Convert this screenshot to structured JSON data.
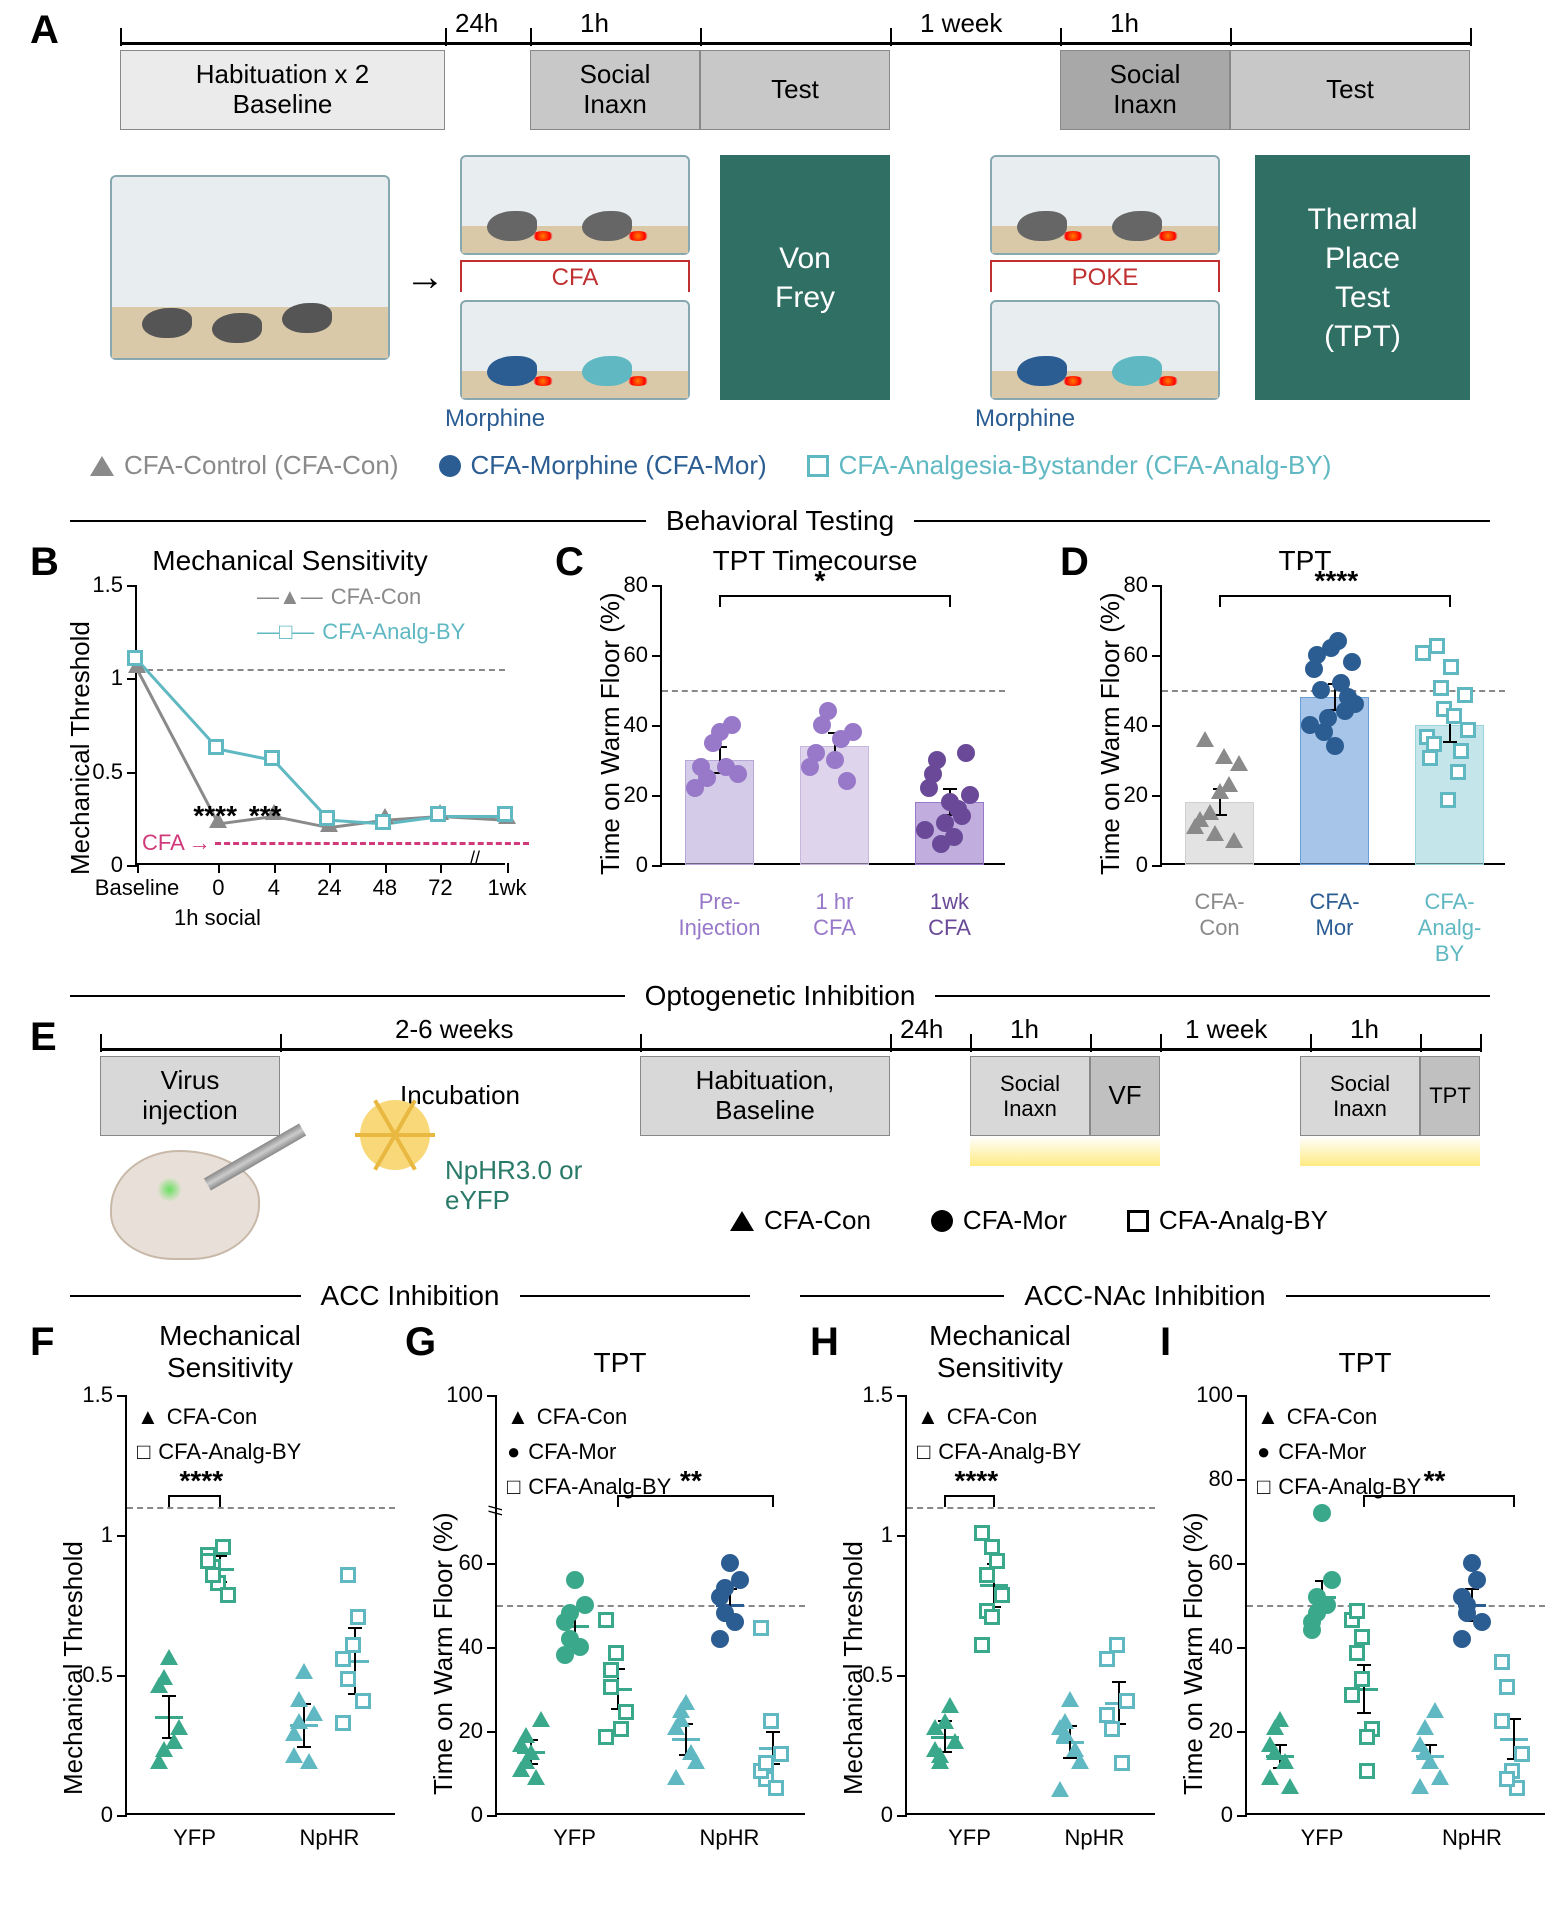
{
  "palette": {
    "cfa_con_gray": "#8a8a8a",
    "cfa_mor_blue": "#2b5d93",
    "cfa_analg_cyan": "#5fb8c2",
    "green_box": "#2f6f64",
    "purple_light": "#b8a8d8",
    "purple_mid": "#9878c8",
    "purple_dark": "#6a4a98",
    "teal_green": "#3aa88a",
    "teal_cyan": "#5fb8c2",
    "nav_blue": "#2b5d93",
    "pink": "#d13a7a",
    "dashed_gray": "#888888"
  },
  "panelA": {
    "label": "A",
    "timeline_intervals": [
      "24h",
      "1h",
      "1 week",
      "1h"
    ],
    "boxes": [
      {
        "text": "Habituation x 2\nBaseline",
        "bg": "#ebebeb"
      },
      {
        "text": "Social\nInaxn",
        "bg": "#c8c8c8"
      },
      {
        "text": "Test",
        "bg": "#c8c8c8"
      },
      {
        "text": "Social\nInaxn",
        "bg": "#a8a8a8"
      },
      {
        "text": "Test",
        "bg": "#c8c8c8"
      }
    ],
    "green1": "Von\nFrey",
    "green2": "Thermal\nPlace\nTest\n(TPT)",
    "cfa_label": "CFA",
    "poke_label": "POKE",
    "morphine_label": "Morphine",
    "legend": [
      {
        "text": "CFA-Control (CFA-Con)",
        "marker": "tri",
        "color": "#8a8a8a"
      },
      {
        "text": "CFA-Morphine (CFA-Mor)",
        "marker": "circ",
        "color": "#2b5d93"
      },
      {
        "text": "CFA-Analgesia-Bystander (CFA-Analg-BY)",
        "marker": "sq",
        "color": "#5fb8c2"
      }
    ]
  },
  "section_behavioral": "Behavioral Testing",
  "panelB": {
    "label": "B",
    "title": "Mechanical Sensitivity",
    "ylabel": "Mechanical Threshold",
    "ylim": [
      0,
      1.5
    ],
    "yticks": [
      0,
      0.5,
      1.0,
      1.5
    ],
    "xticks": [
      "Baseline",
      "0",
      "4",
      "24",
      "48",
      "72",
      "1wk"
    ],
    "x_positions": [
      0,
      0.22,
      0.37,
      0.52,
      0.67,
      0.82,
      1.0
    ],
    "sub_label": "1h social",
    "cfa_arrow_label": "CFA",
    "ref_dash": 1.05,
    "series": [
      {
        "name": "CFA-Con",
        "color": "#8a8a8a",
        "marker": "tri",
        "y": [
          1.05,
          0.22,
          0.26,
          0.2,
          0.24,
          0.26,
          0.24
        ]
      },
      {
        "name": "CFA-Analg-BY",
        "color": "#5fb8c2",
        "marker": "sq",
        "y": [
          1.1,
          0.62,
          0.56,
          0.24,
          0.22,
          0.26,
          0.26
        ]
      }
    ],
    "sig": [
      {
        "at": 0.22,
        "text": "****"
      },
      {
        "at": 0.37,
        "text": "***"
      }
    ],
    "legend": [
      "CFA-Con",
      "CFA-Analg-BY"
    ]
  },
  "panelC": {
    "label": "C",
    "title": "TPT Timecourse",
    "ylabel": "Time on Warm Floor (%)",
    "ylim": [
      0,
      80
    ],
    "yticks": [
      0,
      20,
      40,
      60,
      80
    ],
    "ref_dash": 50,
    "bars": [
      {
        "label": "Pre-\nInjection",
        "mean": 30,
        "err": 4,
        "color": "#b8a8d8",
        "dot_color": "#9878c8",
        "points": [
          22,
          28,
          25,
          35,
          38,
          28,
          40,
          26
        ]
      },
      {
        "label": "1 hr\nCFA",
        "mean": 34,
        "err": 4,
        "color": "#c8b8e0",
        "dot_color": "#9878c8",
        "points": [
          28,
          32,
          40,
          44,
          30,
          36,
          24,
          38
        ]
      },
      {
        "label": "1wk\nCFA",
        "mean": 18,
        "err": 4,
        "color": "#9878c8",
        "dot_color": "#6a4a98",
        "points": [
          10,
          22,
          26,
          30,
          6,
          12,
          18,
          8,
          16,
          14,
          32,
          20
        ]
      }
    ],
    "sig": {
      "from": 0,
      "to": 2,
      "text": "*"
    }
  },
  "panelD": {
    "label": "D",
    "title": "TPT",
    "ylabel": "Time on Warm Floor (%)",
    "ylim": [
      0,
      80
    ],
    "yticks": [
      0,
      20,
      40,
      60,
      80
    ],
    "ref_dash": 50,
    "bars": [
      {
        "label": "CFA-\nCon",
        "mean": 18,
        "err": 4,
        "color": "#d0d0d0",
        "marker": "tri",
        "marker_color": "#8a8a8a",
        "points": [
          10,
          12,
          35,
          14,
          8,
          20,
          30,
          22,
          6,
          28
        ]
      },
      {
        "label": "CFA-\nMor",
        "mean": 48,
        "err": 4,
        "color": "#6b9ed8",
        "marker": "circ",
        "marker_color": "#2b5d93",
        "points": [
          40,
          56,
          60,
          50,
          38,
          42,
          62,
          34,
          64,
          52,
          44,
          48,
          58,
          46
        ]
      },
      {
        "label": "CFA-\nAnalg-BY",
        "mean": 40,
        "err": 5,
        "color": "#9dd4db",
        "marker": "sq",
        "marker_color": "#5fb8c2",
        "points": [
          60,
          36,
          30,
          34,
          62,
          50,
          44,
          18,
          56,
          42,
          26,
          32,
          48,
          38
        ]
      }
    ],
    "sig": {
      "from": 0,
      "to": 2,
      "text": "****"
    }
  },
  "section_opto": "Optogenetic Inhibition",
  "panelE": {
    "label": "E",
    "boxes": [
      {
        "text": "Virus\ninjection",
        "bg": "#d8d8d8"
      },
      {
        "text_over": "2-6 weeks",
        "text": "Incubation",
        "bg": "transparent"
      },
      {
        "text": "Habituation,\nBaseline",
        "bg": "#d8d8d8"
      },
      {
        "text": "Social\nInaxn",
        "bg": "#d8d8d8"
      },
      {
        "text": "VF",
        "bg": "#c0c0c0"
      },
      {
        "text": "Social\nInaxn",
        "bg": "#d8d8d8"
      },
      {
        "text": "TPT",
        "bg": "#c0c0c0"
      }
    ],
    "timeline_labels": [
      "24h",
      "1h",
      "1 week",
      "1h"
    ],
    "virus_labels": [
      "NpHR3.0 or",
      "eYFP"
    ],
    "legend": [
      {
        "text": "CFA-Con",
        "marker": "tri"
      },
      {
        "text": "CFA-Mor",
        "marker": "circ"
      },
      {
        "text": "CFA-Analg-BY",
        "marker": "sq"
      }
    ]
  },
  "section_acc": "ACC Inhibition",
  "section_accnac": "ACC-NAc Inhibition",
  "panelF": {
    "label": "F",
    "title": "Mechanical\nSensitivity",
    "ylabel": "Mechanical Threshold",
    "ylim": [
      0,
      1.5
    ],
    "yticks": [
      0,
      0.5,
      1.0,
      1.5
    ],
    "ref_dash": 1.1,
    "groups": [
      "YFP",
      "NpHR"
    ],
    "legend": [
      "CFA-Con",
      "CFA-Analg-BY"
    ],
    "series": [
      {
        "group": "YFP",
        "cond": "CFA-Con",
        "marker": "tri",
        "color": "#3aa88a",
        "mean": 0.35,
        "err": 0.08,
        "points": [
          0.18,
          0.48,
          0.55,
          0.25,
          0.3,
          0.45,
          0.22
        ]
      },
      {
        "group": "YFP",
        "cond": "CFA-Analg-BY",
        "marker": "sq",
        "color": "#3aa88a",
        "mean": 0.88,
        "err": 0.05,
        "points": [
          0.92,
          0.88,
          0.82,
          0.95,
          0.78,
          0.9,
          0.85
        ]
      },
      {
        "group": "NpHR",
        "cond": "CFA-Con",
        "marker": "tri",
        "color": "#5fb8c2",
        "mean": 0.32,
        "err": 0.08,
        "points": [
          0.2,
          0.32,
          0.5,
          0.18,
          0.35,
          0.28,
          0.4
        ]
      },
      {
        "group": "NpHR",
        "cond": "CFA-Analg-BY",
        "marker": "sq",
        "color": "#5fb8c2",
        "mean": 0.55,
        "err": 0.12,
        "points": [
          0.32,
          0.85,
          0.6,
          0.7,
          0.4,
          0.55,
          0.48
        ]
      }
    ],
    "sig": {
      "from": 0,
      "to": 1,
      "text": "****"
    }
  },
  "panelG": {
    "label": "G",
    "title": "TPT",
    "ylabel": "Time on Warm Floor (%)",
    "ylim": [
      0,
      100
    ],
    "yticks": [
      0,
      20,
      40,
      60,
      100
    ],
    "ref_dash": 50,
    "groups": [
      "YFP",
      "NpHR"
    ],
    "legend": [
      "CFA-Con",
      "CFA-Mor",
      "CFA-Analg-BY"
    ],
    "series": [
      {
        "group": "YFP",
        "cond": "CFA-Con",
        "marker": "tri",
        "color": "#3aa88a",
        "mean": 15,
        "err": 3,
        "points": [
          10,
          18,
          14,
          8,
          22,
          16,
          12
        ]
      },
      {
        "group": "YFP",
        "cond": "CFA-Mor",
        "marker": "circ",
        "color": "#3aa88a",
        "mean": 45,
        "err": 4,
        "points": [
          38,
          42,
          56,
          40,
          50,
          46,
          48
        ]
      },
      {
        "group": "YFP",
        "cond": "CFA-Analg-BY",
        "marker": "sq",
        "color": "#3aa88a",
        "mean": 30,
        "err": 5,
        "points": [
          46,
          30,
          38,
          20,
          24,
          18,
          34
        ]
      },
      {
        "group": "NpHR",
        "cond": "CFA-Con",
        "marker": "tri",
        "color": "#5fb8c2",
        "mean": 18,
        "err": 4,
        "points": [
          8,
          22,
          26,
          14,
          12,
          20,
          24
        ]
      },
      {
        "group": "NpHR",
        "cond": "CFA-Mor",
        "marker": "circ",
        "color": "#2b5d93",
        "mean": 50,
        "err": 4,
        "points": [
          42,
          48,
          60,
          46,
          56,
          52,
          54
        ]
      },
      {
        "group": "NpHR",
        "cond": "CFA-Analg-BY",
        "marker": "sq",
        "color": "#5fb8c2",
        "mean": 16,
        "err": 4,
        "points": [
          44,
          8,
          22,
          6,
          14,
          10,
          12
        ]
      }
    ],
    "sig": {
      "from": 2,
      "to": 5,
      "text": "**"
    }
  },
  "panelH": {
    "label": "H",
    "title": "Mechanical\nSensitivity",
    "ylabel": "Mechanical Threshold",
    "ylim": [
      0,
      1.5
    ],
    "yticks": [
      0,
      0.5,
      1.0,
      1.5
    ],
    "ref_dash": 1.1,
    "groups": [
      "YFP",
      "NpHR"
    ],
    "legend": [
      "CFA-Con",
      "CFA-Analg-BY"
    ],
    "series": [
      {
        "group": "YFP",
        "cond": "CFA-Con",
        "marker": "tri",
        "color": "#3aa88a",
        "mean": 0.28,
        "err": 0.06,
        "points": [
          0.22,
          0.18,
          0.32,
          0.38,
          0.25,
          0.3,
          0.2
        ]
      },
      {
        "group": "YFP",
        "cond": "CFA-Analg-BY",
        "marker": "sq",
        "color": "#3aa88a",
        "mean": 0.82,
        "err": 0.08,
        "points": [
          0.6,
          0.72,
          0.95,
          0.9,
          0.78,
          1.0,
          0.85,
          0.7
        ]
      },
      {
        "group": "NpHR",
        "cond": "CFA-Con",
        "marker": "tri",
        "color": "#5fb8c2",
        "mean": 0.26,
        "err": 0.06,
        "points": [
          0.08,
          0.32,
          0.4,
          0.22,
          0.18,
          0.3,
          0.28
        ]
      },
      {
        "group": "NpHR",
        "cond": "CFA-Analg-BY",
        "marker": "sq",
        "color": "#5fb8c2",
        "mean": 0.4,
        "err": 0.08,
        "points": [
          0.55,
          0.3,
          0.6,
          0.18,
          0.4,
          0.35
        ]
      }
    ],
    "sig": {
      "from": 0,
      "to": 1,
      "text": "****"
    }
  },
  "panelI": {
    "label": "I",
    "title": "TPT",
    "ylabel": "Time on Warm Floor (%)",
    "ylim": [
      0,
      100
    ],
    "yticks": [
      0,
      20,
      40,
      60,
      80,
      100
    ],
    "ref_dash": 50,
    "groups": [
      "YFP",
      "NpHR"
    ],
    "legend": [
      "CFA-Con",
      "CFA-Mor",
      "CFA-Analg-BY"
    ],
    "series": [
      {
        "group": "YFP",
        "cond": "CFA-Con",
        "marker": "tri",
        "color": "#3aa88a",
        "mean": 14,
        "err": 3,
        "points": [
          8,
          20,
          22,
          12,
          6,
          16,
          14
        ]
      },
      {
        "group": "YFP",
        "cond": "CFA-Mor",
        "marker": "circ",
        "color": "#3aa88a",
        "mean": 52,
        "err": 4,
        "points": [
          46,
          48,
          72,
          50,
          56,
          44,
          52
        ]
      },
      {
        "group": "YFP",
        "cond": "CFA-Analg-BY",
        "marker": "sq",
        "color": "#3aa88a",
        "mean": 30,
        "err": 6,
        "points": [
          46,
          38,
          42,
          10,
          20,
          28,
          48,
          32,
          18
        ]
      },
      {
        "group": "NpHR",
        "cond": "CFA-Con",
        "marker": "tri",
        "color": "#5fb8c2",
        "mean": 14,
        "err": 3,
        "points": [
          6,
          20,
          12,
          24,
          8,
          16,
          14
        ]
      },
      {
        "group": "NpHR",
        "cond": "CFA-Mor",
        "marker": "circ",
        "color": "#2b5d93",
        "mean": 50,
        "err": 4,
        "points": [
          42,
          48,
          60,
          56,
          46,
          52,
          50
        ]
      },
      {
        "group": "NpHR",
        "cond": "CFA-Analg-BY",
        "marker": "sq",
        "color": "#5fb8c2",
        "mean": 18,
        "err": 5,
        "points": [
          36,
          30,
          10,
          6,
          14,
          22,
          8
        ]
      }
    ],
    "sig": {
      "from": 2,
      "to": 5,
      "text": "**"
    }
  }
}
